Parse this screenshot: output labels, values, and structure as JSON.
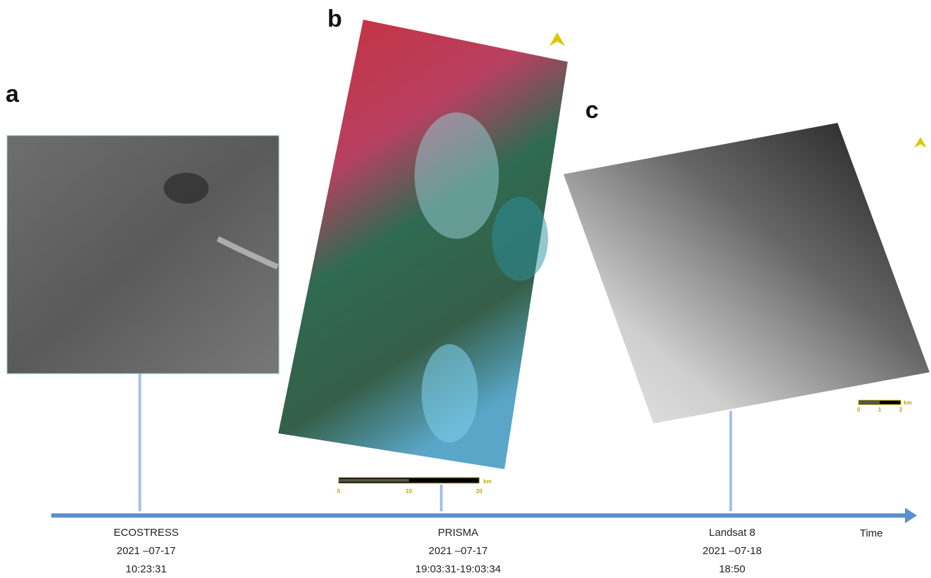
{
  "panels": [
    {
      "letter": "a"
    },
    {
      "letter": "b",
      "scale_bar": {
        "ticks": [
          "0",
          "10",
          "20"
        ],
        "unit": "km"
      }
    },
    {
      "letter": "c",
      "scale_bar": {
        "ticks": [
          "0",
          "1",
          "2"
        ],
        "unit": "km"
      }
    }
  ],
  "timeline": {
    "axis_label": "Time",
    "events": [
      {
        "sensor": "ECOSTRESS",
        "date": "2021 –07-17",
        "time": "10:23:31"
      },
      {
        "sensor": "PRISMA",
        "date": "2021 –07-17",
        "time": "19:03:31-19:03:34"
      },
      {
        "sensor": "Landsat 8",
        "date": "2021 –07-18",
        "time": "18:50"
      }
    ]
  }
}
